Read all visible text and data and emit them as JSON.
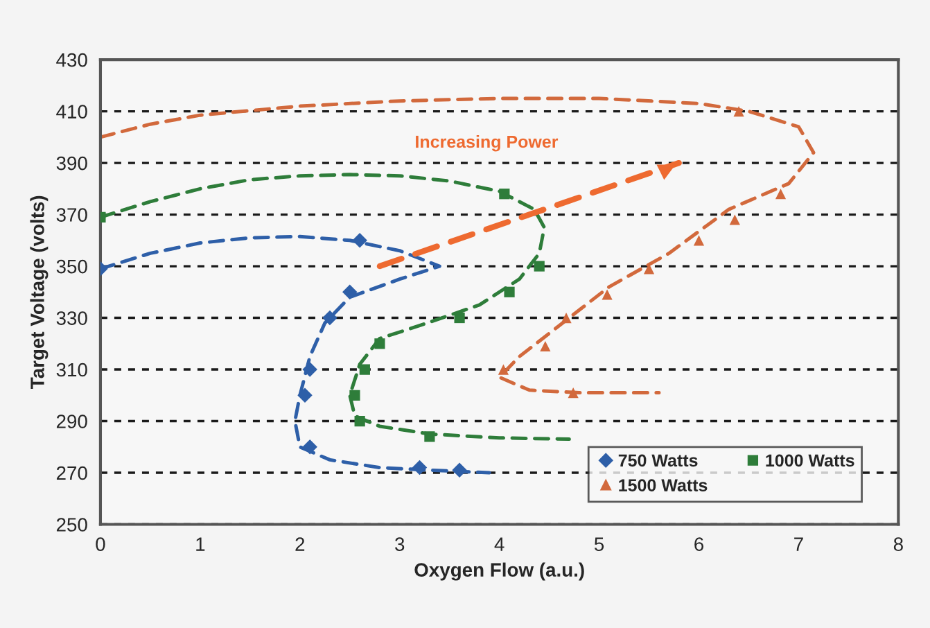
{
  "chart_data": {
    "type": "scatter",
    "xlabel": "Oxygen Flow (a.u.)",
    "ylabel": "Target Voltage (volts)",
    "xlim": [
      0,
      8
    ],
    "xticks": [
      0,
      1,
      2,
      3,
      4,
      5,
      6,
      7,
      8
    ],
    "ylim": [
      250,
      430
    ],
    "yticks": [
      250,
      270,
      290,
      310,
      330,
      350,
      370,
      390,
      410,
      430
    ],
    "grid": "y",
    "legend": "bottom right",
    "series": [
      {
        "type": "line",
        "line_style": "dashed",
        "marker": "none",
        "color": "#2e5fa8",
        "x": [
          0,
          0.5,
          1,
          1.5,
          2,
          2.5,
          3,
          3.4,
          3,
          2.5,
          2.25,
          2.1,
          2,
          1.95,
          2,
          2.3,
          2.8,
          3.3,
          3.9
        ],
        "values": [
          349,
          355,
          359,
          361,
          361.5,
          360,
          356,
          350,
          345,
          338,
          328,
          315,
          300,
          290,
          280,
          275,
          272,
          271,
          270
        ]
      },
      {
        "name": "750 Watts",
        "marker": "diamond",
        "color": "#2e5fa8",
        "x": [
          0,
          2.6,
          2.5,
          2.3,
          2.1,
          2.05,
          2.1,
          3.2,
          3.6
        ],
        "values": [
          349,
          360,
          340,
          330,
          310,
          300,
          280,
          272,
          271
        ]
      },
      {
        "type": "line",
        "line_style": "dashed",
        "marker": "none",
        "color": "#2e7d3a",
        "x": [
          0,
          0.5,
          1,
          1.5,
          2,
          2.5,
          3,
          3.5,
          4,
          4.35,
          4.45,
          4.4,
          4.2,
          3.8,
          3.2,
          2.8,
          2.6,
          2.5,
          2.55,
          2.8,
          3.3,
          4,
          4.7
        ],
        "values": [
          369,
          375,
          380,
          383.5,
          385,
          385.5,
          385,
          383,
          379,
          372,
          365,
          355,
          345,
          335,
          327,
          322,
          312,
          300,
          292,
          288,
          285,
          283.5,
          283
        ]
      },
      {
        "name": "1000 Watts",
        "marker": "square",
        "color": "#2e7d3a",
        "x": [
          0,
          4.05,
          4.4,
          4.1,
          3.6,
          2.8,
          2.65,
          2.55,
          2.6,
          3.3
        ],
        "values": [
          369,
          378,
          350,
          340,
          330,
          320,
          310,
          300,
          290,
          284
        ]
      },
      {
        "type": "line",
        "line_style": "dashed",
        "marker": "none",
        "color": "#d2693c",
        "x": [
          0,
          0.5,
          1,
          2,
          3,
          4,
          5,
          6,
          6.5,
          7,
          7.15,
          6.9,
          6.3,
          5.7,
          5.1,
          4.6,
          4.2,
          4.0,
          4.3,
          4.8,
          5.6
        ],
        "values": [
          400,
          405,
          408.5,
          412,
          414,
          415,
          415,
          413,
          410,
          404,
          394,
          382,
          372,
          355,
          342,
          327,
          315,
          307,
          302,
          301,
          301
        ]
      },
      {
        "name": "1500 Watts",
        "marker": "triangle",
        "color": "#d2693c",
        "x": [
          6.4,
          6.82,
          6.36,
          6.0,
          5.5,
          5.08,
          4.67,
          4.46,
          4.04,
          4.74
        ],
        "values": [
          410,
          378,
          368,
          360,
          349,
          339,
          330,
          319,
          310,
          301
        ]
      },
      {
        "type": "line",
        "line_style": "dashed",
        "marker": "none",
        "color": "#ee6a30",
        "x": [
          2.8,
          5.8
        ],
        "values": [
          350,
          390
        ]
      }
    ],
    "annotations": [
      "Increasing Power"
    ]
  }
}
